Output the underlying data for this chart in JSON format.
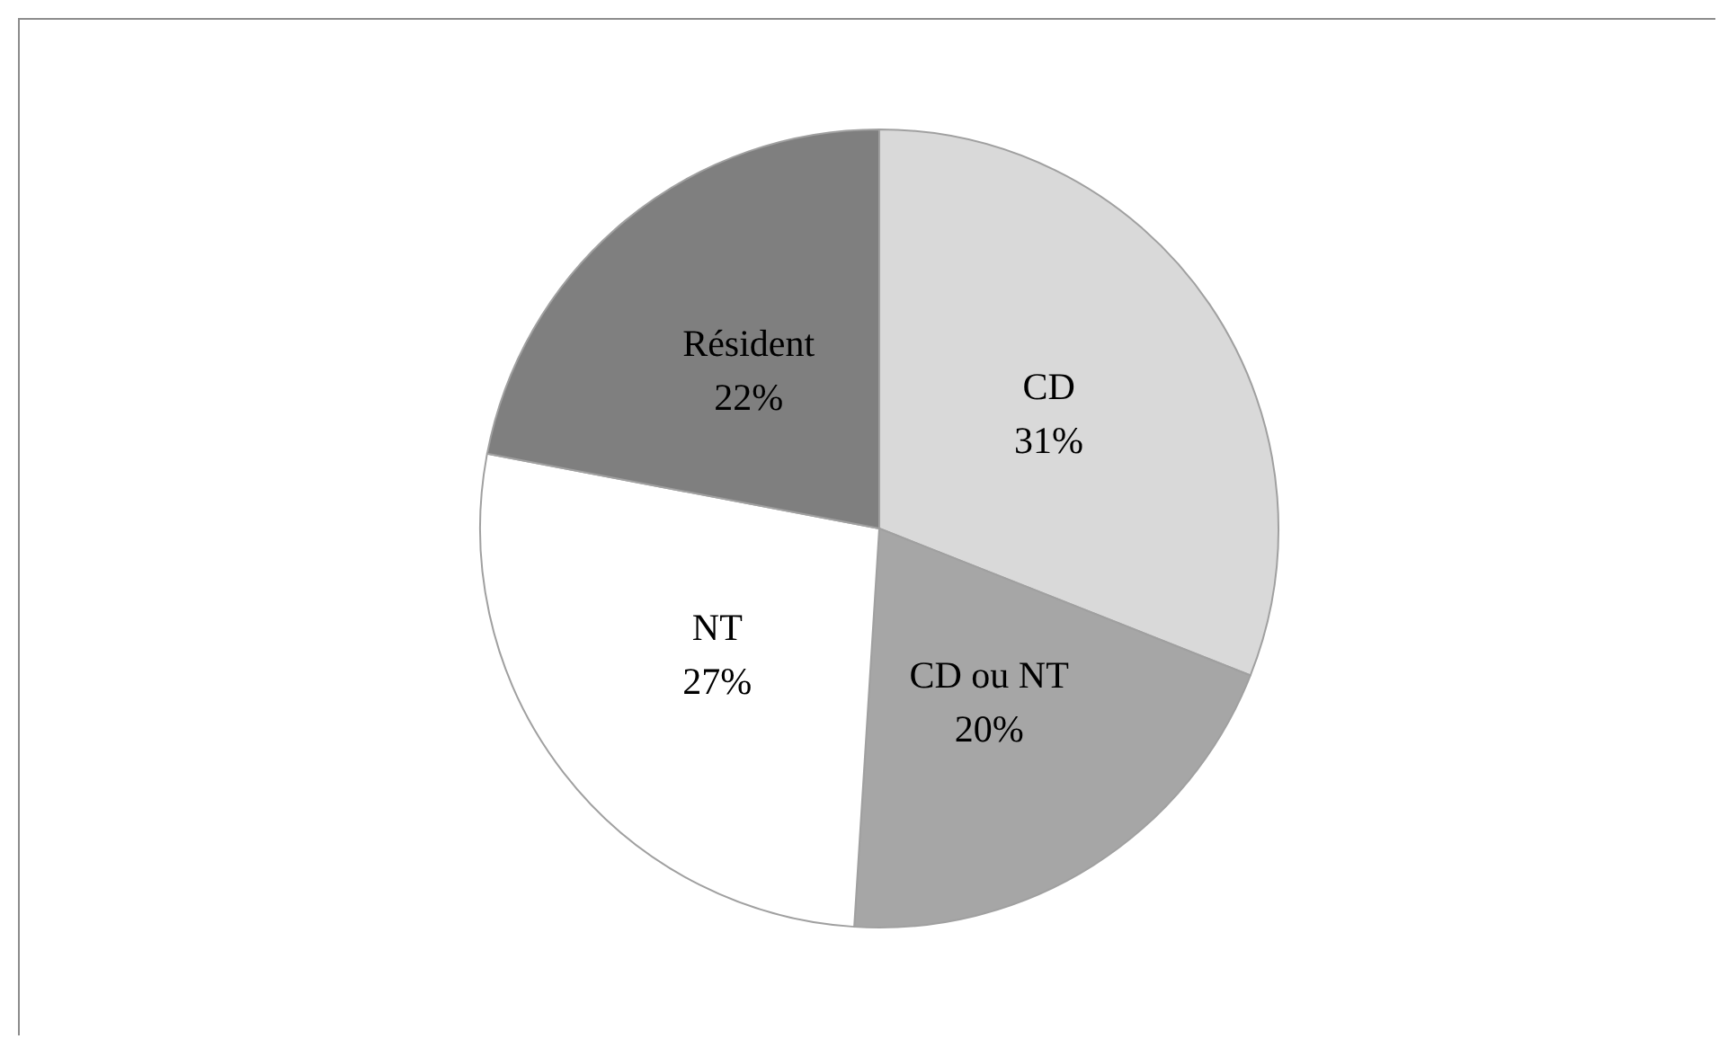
{
  "chart_data": {
    "type": "pie",
    "categories": [
      "CD",
      "CD ou NT",
      "NT",
      "Résident"
    ],
    "values": [
      31,
      20,
      27,
      22
    ],
    "colors": [
      "#d9d9d9",
      "#a6a6a6",
      "#ffffff",
      "#7f7f7f"
    ],
    "value_labels": [
      "31%",
      "20%",
      "27%",
      "22%"
    ],
    "legend": false
  }
}
